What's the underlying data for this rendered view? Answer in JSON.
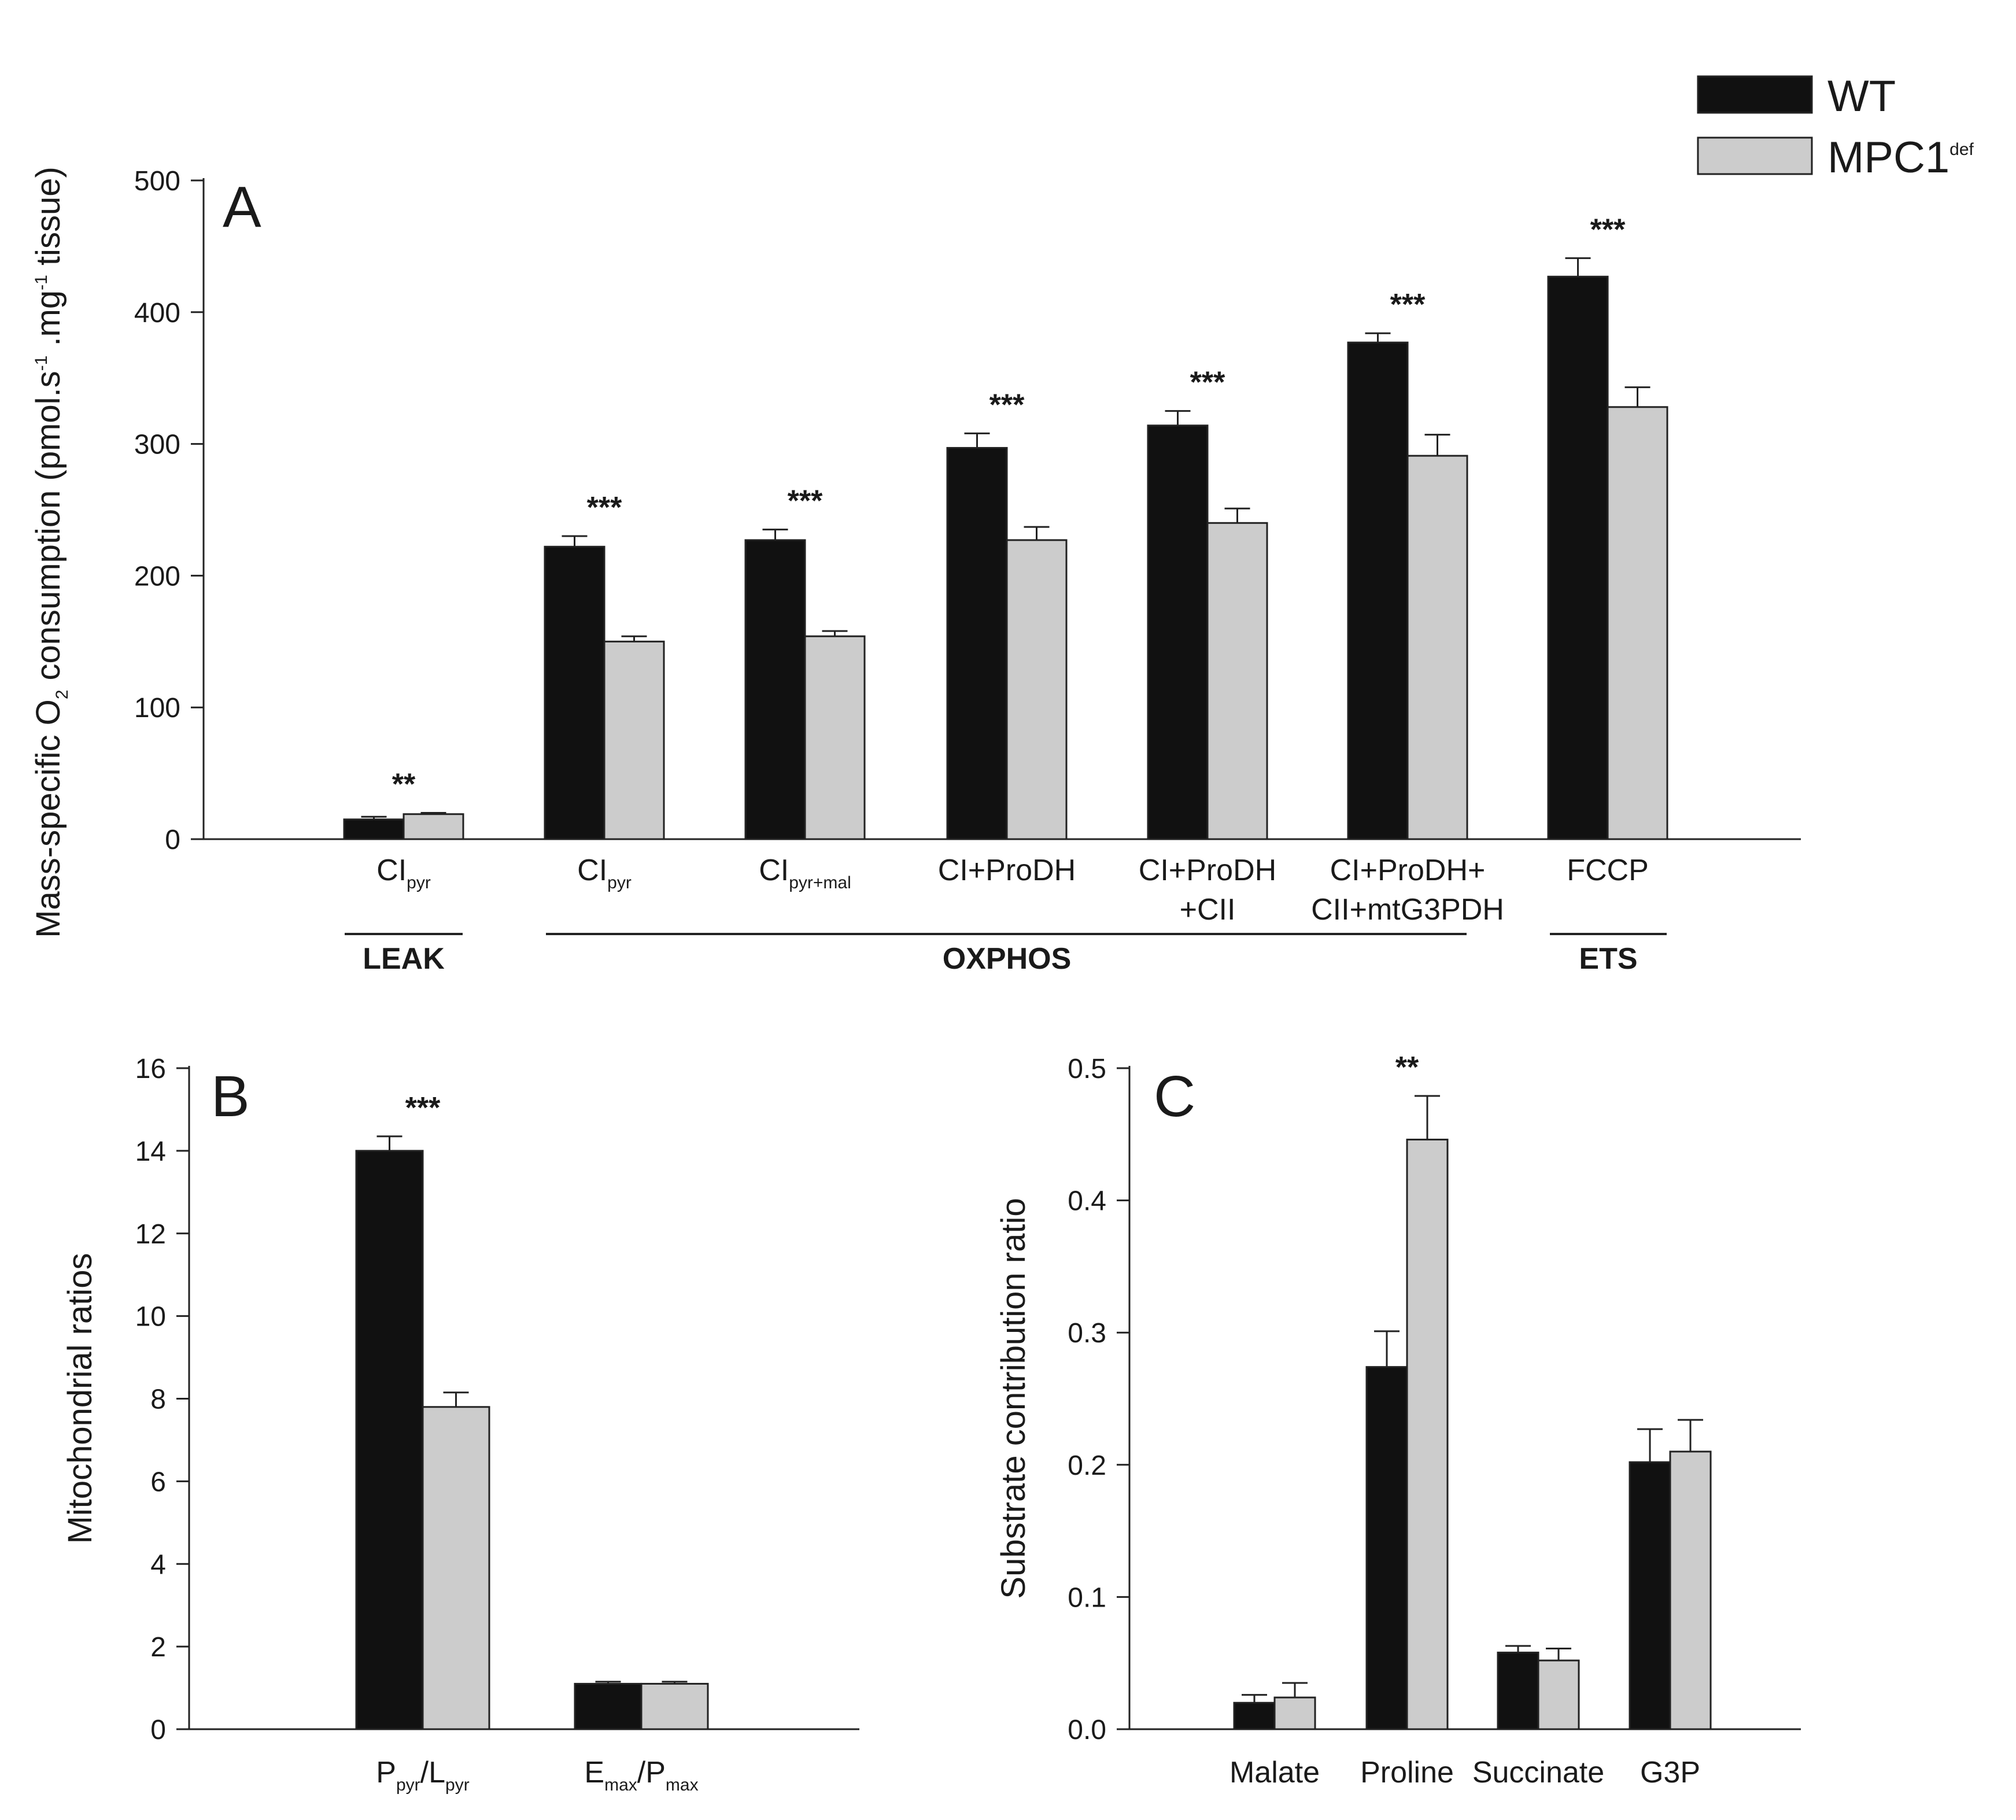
{
  "legend": {
    "items": [
      {
        "label": "WT",
        "color": "#111111"
      },
      {
        "label": "MPC1",
        "sup": "def",
        "color": "#cccccc"
      }
    ]
  },
  "chart_data": [
    {
      "panel": "A",
      "type": "bar",
      "ylabel": {
        "main": "Mass-specific O",
        "o2_sub": "2",
        "mid": " consumption (pmol.s",
        "s_sup": "-1",
        "mid2": " .mg",
        "mg_sup": "-1",
        "end": " tissue)"
      },
      "ylim": [
        0,
        500
      ],
      "yticks": [
        "0",
        "100",
        "200",
        "300",
        "400",
        "500"
      ],
      "categories": [
        {
          "lines": [
            {
              "text": "CI",
              "sub": "pyr"
            }
          ]
        },
        {
          "lines": [
            {
              "text": "CI",
              "sub": "pyr"
            }
          ]
        },
        {
          "lines": [
            {
              "text": "CI",
              "sub": "pyr+mal"
            }
          ]
        },
        {
          "lines": [
            {
              "text": "CI+ProDH"
            }
          ]
        },
        {
          "lines": [
            {
              "text": "CI+ProDH"
            },
            {
              "text": "+CII"
            }
          ]
        },
        {
          "lines": [
            {
              "text": "CI+ProDH+"
            },
            {
              "text": "CII+mtG3PDH"
            }
          ]
        },
        {
          "lines": [
            {
              "text": "FCCP"
            }
          ]
        }
      ],
      "series": [
        {
          "name": "WT",
          "values": [
            15,
            222,
            227,
            297,
            314,
            377,
            427
          ],
          "errors": [
            2,
            8,
            8,
            11,
            11,
            7,
            14
          ]
        },
        {
          "name": "MPC1def",
          "values": [
            19,
            150,
            154,
            227,
            240,
            291,
            328
          ],
          "errors": [
            1,
            4,
            4,
            10,
            11,
            16,
            15
          ]
        }
      ],
      "significance": [
        "**",
        "***",
        "***",
        "***",
        "***",
        "***",
        "***"
      ],
      "groups": [
        {
          "label": "LEAK",
          "span": [
            0,
            0
          ]
        },
        {
          "label": "OXPHOS",
          "span": [
            1,
            5
          ]
        },
        {
          "label": "ETS",
          "span": [
            6,
            6
          ]
        }
      ]
    },
    {
      "panel": "B",
      "type": "bar",
      "ylabel": "Mitochondrial ratios",
      "ylim": [
        0,
        16
      ],
      "yticks": [
        "0",
        "2",
        "4",
        "6",
        "8",
        "10",
        "12",
        "14",
        "16"
      ],
      "categories": [
        {
          "parts": [
            {
              "text": "P",
              "sub": "pyr"
            },
            {
              "text": "/L",
              "sub": "pyr"
            }
          ]
        },
        {
          "parts": [
            {
              "text": "E",
              "sub": "max"
            },
            {
              "text": "/P",
              "sub": "max"
            }
          ]
        }
      ],
      "series": [
        {
          "name": "WT",
          "values": [
            14.0,
            1.1
          ],
          "errors": [
            0.35,
            0.05
          ]
        },
        {
          "name": "MPC1def",
          "values": [
            7.8,
            1.1
          ],
          "errors": [
            0.35,
            0.05
          ]
        }
      ],
      "significance": [
        "***",
        ""
      ]
    },
    {
      "panel": "C",
      "type": "bar",
      "ylabel": "Substrate contribution ratio",
      "ylim": [
        0,
        0.5
      ],
      "yticks": [
        "0.0",
        "0.1",
        "0.2",
        "0.3",
        "0.4",
        "0.5"
      ],
      "categories": [
        "Malate",
        "Proline",
        "Succinate",
        "G3P"
      ],
      "series": [
        {
          "name": "WT",
          "values": [
            0.02,
            0.274,
            0.058,
            0.202
          ],
          "errors": [
            0.006,
            0.027,
            0.005,
            0.025
          ]
        },
        {
          "name": "MPC1def",
          "values": [
            0.024,
            0.446,
            0.052,
            0.21
          ],
          "errors": [
            0.011,
            0.033,
            0.009,
            0.024
          ]
        }
      ],
      "significance": [
        "",
        "**",
        "",
        ""
      ]
    }
  ]
}
